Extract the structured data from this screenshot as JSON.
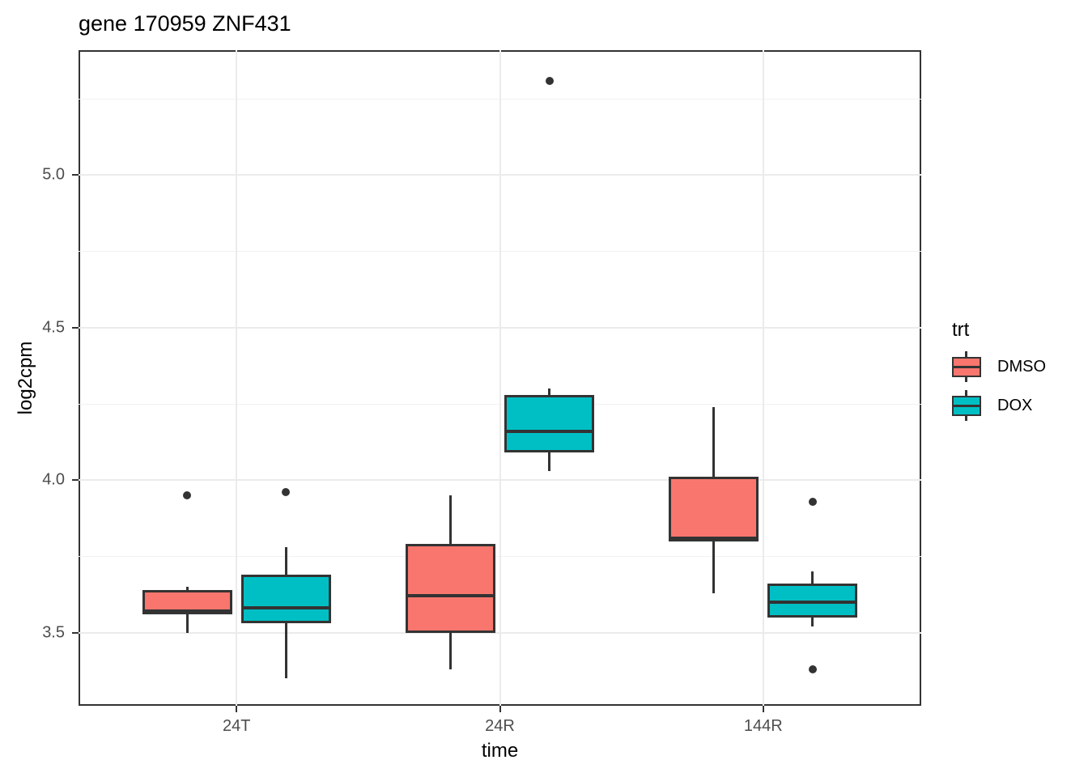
{
  "chart_data": {
    "type": "boxplot",
    "title": "gene 170959 ZNF431",
    "xlabel": "time",
    "ylabel": "log2cpm",
    "categories": [
      "24T",
      "24R",
      "144R"
    ],
    "legend": {
      "title": "trt",
      "position": "right",
      "entries": [
        {
          "label": "DMSO",
          "color": "#F8766D"
        },
        {
          "label": "DOX",
          "color": "#00BFC4"
        }
      ]
    },
    "y_ticks": [
      3.5,
      4.0,
      4.5,
      5.0
    ],
    "y_minor_ticks": [
      3.75,
      4.25,
      4.75,
      5.25
    ],
    "ylim": [
      3.26,
      5.41
    ],
    "grid": "on",
    "boxes": [
      {
        "time": "24T",
        "trt": "DMSO",
        "whisker_low": 3.5,
        "q1": 3.56,
        "median": 3.57,
        "q3": 3.64,
        "whisker_high": 3.65,
        "outliers": [
          3.95
        ]
      },
      {
        "time": "24T",
        "trt": "DOX",
        "whisker_low": 3.35,
        "q1": 3.53,
        "median": 3.58,
        "q3": 3.69,
        "whisker_high": 3.78,
        "outliers": [
          3.96
        ]
      },
      {
        "time": "24R",
        "trt": "DMSO",
        "whisker_low": 3.38,
        "q1": 3.5,
        "median": 3.62,
        "q3": 3.79,
        "whisker_high": 3.95,
        "outliers": []
      },
      {
        "time": "24R",
        "trt": "DOX",
        "whisker_low": 4.03,
        "q1": 4.09,
        "median": 4.16,
        "q3": 4.28,
        "whisker_high": 4.3,
        "outliers": [
          5.31
        ]
      },
      {
        "time": "144R",
        "trt": "DMSO",
        "whisker_low": 3.63,
        "q1": 3.8,
        "median": 3.81,
        "q3": 4.01,
        "whisker_high": 4.24,
        "outliers": []
      },
      {
        "time": "144R",
        "trt": "DOX",
        "whisker_low": 3.52,
        "q1": 3.55,
        "median": 3.6,
        "q3": 3.66,
        "whisker_high": 3.7,
        "outliers": [
          3.93,
          3.38
        ]
      }
    ],
    "colors": {
      "box_border": "#333333",
      "gridline_major": "#EBEBEB",
      "gridline_minor": "#F1F1F1",
      "tick_label": "#4D4D4D",
      "outlier": "#333333"
    }
  }
}
